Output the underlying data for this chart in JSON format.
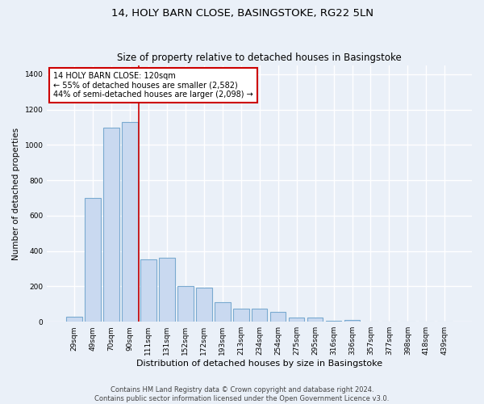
{
  "title": "14, HOLY BARN CLOSE, BASINGSTOKE, RG22 5LN",
  "subtitle": "Size of property relative to detached houses in Basingstoke",
  "xlabel": "Distribution of detached houses by size in Basingstoke",
  "ylabel": "Number of detached properties",
  "bar_labels": [
    "29sqm",
    "49sqm",
    "70sqm",
    "90sqm",
    "111sqm",
    "131sqm",
    "152sqm",
    "172sqm",
    "193sqm",
    "213sqm",
    "234sqm",
    "254sqm",
    "275sqm",
    "295sqm",
    "316sqm",
    "336sqm",
    "357sqm",
    "377sqm",
    "398sqm",
    "418sqm",
    "439sqm"
  ],
  "bar_heights": [
    30,
    700,
    1100,
    1130,
    355,
    360,
    200,
    195,
    110,
    75,
    75,
    55,
    25,
    25,
    5,
    10,
    0,
    0,
    0,
    0,
    0
  ],
  "bar_color": "#c9d9f0",
  "bar_edgecolor": "#7aaad0",
  "bar_linewidth": 0.8,
  "background_color": "#eaf0f8",
  "grid_color": "#ffffff",
  "red_line_x": 3.5,
  "annotation_text": "14 HOLY BARN CLOSE: 120sqm\n← 55% of detached houses are smaller (2,582)\n44% of semi-detached houses are larger (2,098) →",
  "annotation_box_color": "#ffffff",
  "annotation_box_edgecolor": "#cc0000",
  "ylim": [
    0,
    1450
  ],
  "yticks": [
    0,
    200,
    400,
    600,
    800,
    1000,
    1200,
    1400
  ],
  "footer_text": "Contains HM Land Registry data © Crown copyright and database right 2024.\nContains public sector information licensed under the Open Government Licence v3.0.",
  "title_fontsize": 9.5,
  "subtitle_fontsize": 8.5,
  "xlabel_fontsize": 8,
  "ylabel_fontsize": 7.5,
  "tick_fontsize": 6.5,
  "annotation_fontsize": 7,
  "footer_fontsize": 6
}
